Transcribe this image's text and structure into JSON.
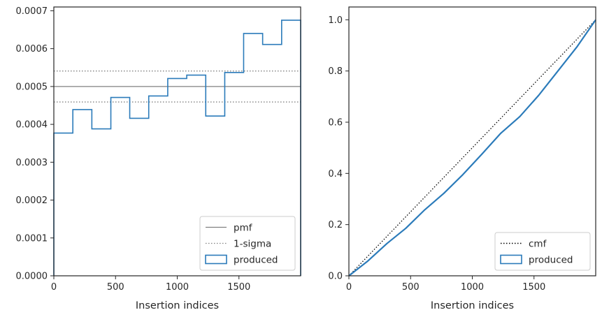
{
  "colors": {
    "series": "#2b7bba",
    "reference": "#808080",
    "cmf_line": "#000000",
    "axes": "#262626",
    "legend_border": "#cccccc"
  },
  "chart_data": [
    {
      "type": "histogram-step",
      "xlabel": "Insertion indices",
      "ylabel": "",
      "xlim": [
        0,
        2000
      ],
      "ylim": [
        0,
        0.00071
      ],
      "xticks": [
        0,
        500,
        1000,
        1500
      ],
      "xtick_labels": [
        "0",
        "500",
        "1000",
        "1500"
      ],
      "yticks": [
        0,
        0.0001,
        0.0002,
        0.0003,
        0.0004,
        0.0005,
        0.0006,
        0.0007
      ],
      "ytick_labels": [
        "0.0000",
        "0.0001",
        "0.0002",
        "0.0003",
        "0.0004",
        "0.0005",
        "0.0006",
        "0.0007"
      ],
      "bin_edges": [
        0,
        154,
        308,
        462,
        615,
        769,
        923,
        1077,
        1231,
        1385,
        1538,
        1692,
        1846,
        2000
      ],
      "values": [
        0.000377,
        0.000439,
        0.000388,
        0.000471,
        0.000416,
        0.000475,
        0.000521,
        0.00053,
        0.000422,
        0.000537,
        0.00064,
        0.000611,
        0.000675
      ],
      "reference_lines": [
        {
          "name": "pmf",
          "y": 0.0005,
          "style": "solid"
        },
        {
          "name": "1-sigma",
          "y": 0.000459,
          "style": "dotted"
        },
        {
          "name": "1-sigma",
          "y": 0.000541,
          "style": "dotted"
        }
      ],
      "legend": {
        "placement": "lower-right",
        "entries": [
          {
            "label": "pmf",
            "kind": "line",
            "style": "solid"
          },
          {
            "label": "1-sigma",
            "kind": "line",
            "style": "dotted"
          },
          {
            "label": "produced",
            "kind": "patch"
          }
        ]
      },
      "grid": false
    },
    {
      "type": "line",
      "xlabel": "Insertion indices",
      "ylabel": "",
      "xlim": [
        0,
        2000
      ],
      "ylim": [
        0,
        1.05
      ],
      "xticks": [
        0,
        500,
        1000,
        1500
      ],
      "xtick_labels": [
        "0",
        "500",
        "1000",
        "1500"
      ],
      "yticks": [
        0,
        0.2,
        0.4,
        0.6,
        0.8,
        1.0
      ],
      "ytick_labels": [
        "0.0",
        "0.2",
        "0.4",
        "0.6",
        "0.8",
        "1.0"
      ],
      "series": [
        {
          "name": "cmf",
          "style": "dotted",
          "x": [
            0,
            2000
          ],
          "y": [
            0,
            1.0
          ]
        },
        {
          "name": "produced",
          "style": "solid",
          "x": [
            0,
            154,
            308,
            462,
            615,
            769,
            923,
            1077,
            1231,
            1385,
            1538,
            1692,
            1846,
            2000
          ],
          "y": [
            0,
            0.058,
            0.126,
            0.186,
            0.258,
            0.322,
            0.395,
            0.475,
            0.557,
            0.622,
            0.705,
            0.799,
            0.893,
            1.0
          ]
        }
      ],
      "legend": {
        "placement": "lower-right",
        "entries": [
          {
            "label": "cmf",
            "kind": "line",
            "style": "dotted"
          },
          {
            "label": "produced",
            "kind": "patch"
          }
        ]
      },
      "grid": false
    }
  ]
}
